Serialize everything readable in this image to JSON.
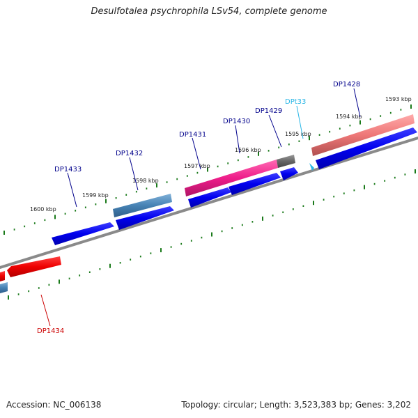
{
  "title": "Desulfotalea psychrophila LSv54, complete genome",
  "footer": {
    "accession": "Accession: NC_006138",
    "summary": "Topology: circular; Length: 3,523,383 bp; Genes: 3,202"
  },
  "colors": {
    "backbone": "#8a8a8a",
    "tick": "#1a7a1a",
    "forward_gene": "#0000ee",
    "reverse_gene": "#ee0000",
    "steel_gene": "#4682b4",
    "pink_gene": "#ee1d8a",
    "salmon_gene": "#ee7777",
    "gray_gene": "#666666",
    "trna": "#29b6e6",
    "label_forward": "#00008b",
    "label_reverse": "#cc0000",
    "label_trna": "#29b6e6"
  },
  "scale": {
    "labels": [
      "1600 kbp",
      "1599 kbp",
      "1598 kbp",
      "1597 kbp",
      "1596 kbp",
      "1595 kbp",
      "1594 kbp",
      "1593 kbp"
    ]
  },
  "genes": [
    {
      "label": "DP1428",
      "kind": "forward"
    },
    {
      "label": "DPt33",
      "kind": "trna"
    },
    {
      "label": "DP1429",
      "kind": "forward"
    },
    {
      "label": "DP1430",
      "kind": "forward"
    },
    {
      "label": "DP1431",
      "kind": "forward"
    },
    {
      "label": "DP1432",
      "kind": "forward"
    },
    {
      "label": "DP1433",
      "kind": "forward"
    },
    {
      "label": "DP1434",
      "kind": "reverse"
    }
  ]
}
